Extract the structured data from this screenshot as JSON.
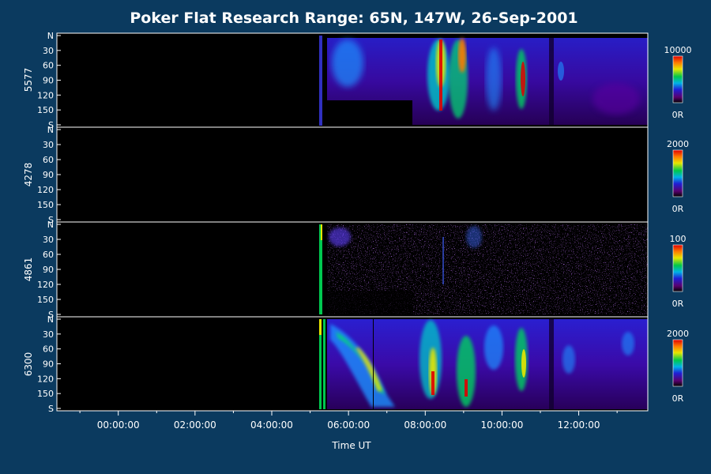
{
  "title": "Poker Flat Research Range: 65N, 147W, 26-Sep-2001",
  "chart_data": {
    "type": "heatmap",
    "title": "Poker Flat Research Range: 65N, 147W, 26-Sep-2001",
    "xlabel": "Time UT",
    "x_ticks": [
      "00:00:00",
      "02:00:00",
      "04:00:00",
      "06:00:00",
      "08:00:00",
      "10:00:00",
      "12:00:00"
    ],
    "x_range_hours": [
      -1.6,
      13.8
    ],
    "y_ticks": [
      "N",
      "30",
      "60",
      "90",
      "120",
      "150",
      "S"
    ],
    "y_range_deg": [
      0,
      180
    ],
    "colormap": "rainbow",
    "colors": {
      "background": "#0b3a5f",
      "plot_bg": "#000000",
      "frame": "#ffffff"
    },
    "panels": [
      {
        "label": "5577",
        "colorbar_max": "10000",
        "colorbar_min": "0R"
      },
      {
        "label": "4278",
        "colorbar_max": "2000",
        "colorbar_min": "0R"
      },
      {
        "label": "4861",
        "colorbar_max": "100",
        "colorbar_min": "0R"
      },
      {
        "label": "6300",
        "colorbar_max": "2000",
        "colorbar_min": "0R"
      }
    ]
  }
}
